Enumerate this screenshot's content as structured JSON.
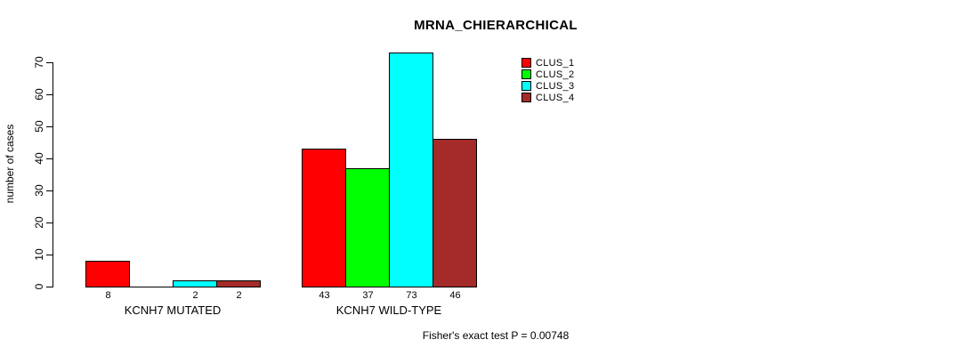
{
  "chart_data": {
    "type": "bar",
    "title": "MRNA_CHIERARCHICAL",
    "xlabel": "",
    "ylabel": "number of cases",
    "ylim": [
      0,
      70
    ],
    "yticks": [
      0,
      10,
      20,
      30,
      40,
      50,
      60,
      70
    ],
    "grid": false,
    "legend_position": "top-right",
    "series": [
      "CLUS_1",
      "CLUS_2",
      "CLUS_3",
      "CLUS_4"
    ],
    "colors": [
      "#ff0000",
      "#00ff00",
      "#00ffff",
      "#a52a2a"
    ],
    "groups": [
      {
        "label": "KCNH7 MUTATED",
        "values": [
          8,
          0,
          2,
          2
        ],
        "value_labels": [
          "8",
          "",
          "2",
          "2"
        ]
      },
      {
        "label": "KCNH7 WILD-TYPE",
        "values": [
          43,
          37,
          73,
          46
        ],
        "value_labels": [
          "43",
          "37",
          "73",
          "46"
        ]
      }
    ],
    "annotation": "Fisher's exact test P = 0.00748"
  }
}
